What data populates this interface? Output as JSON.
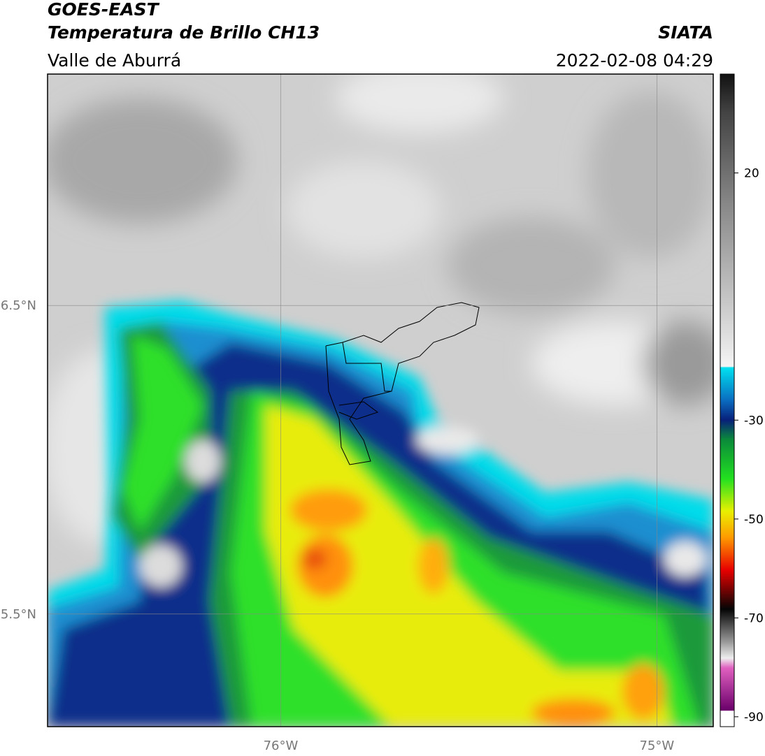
{
  "header": {
    "title": "GOES-EAST",
    "product": "Temperatura de Brillo CH13",
    "source": "SIATA",
    "region": "Valle de Aburrá",
    "datetime": "2022-02-08 04:29"
  },
  "map": {
    "xlim": [
      -76.62,
      -74.85
    ],
    "ylim": [
      5.135,
      7.25
    ],
    "xticks": [
      {
        "value": -76,
        "label": "76°W"
      },
      {
        "value": -75,
        "label": "75°W"
      }
    ],
    "yticks": [
      {
        "value": 6.5,
        "label": "6.5°N"
      },
      {
        "value": 5.5,
        "label": "5.5°N"
      }
    ],
    "grid": true
  },
  "colorbar": {
    "range": [
      -92,
      40
    ],
    "ticks": [
      20,
      -30,
      -50,
      -70,
      -90
    ]
  }
}
